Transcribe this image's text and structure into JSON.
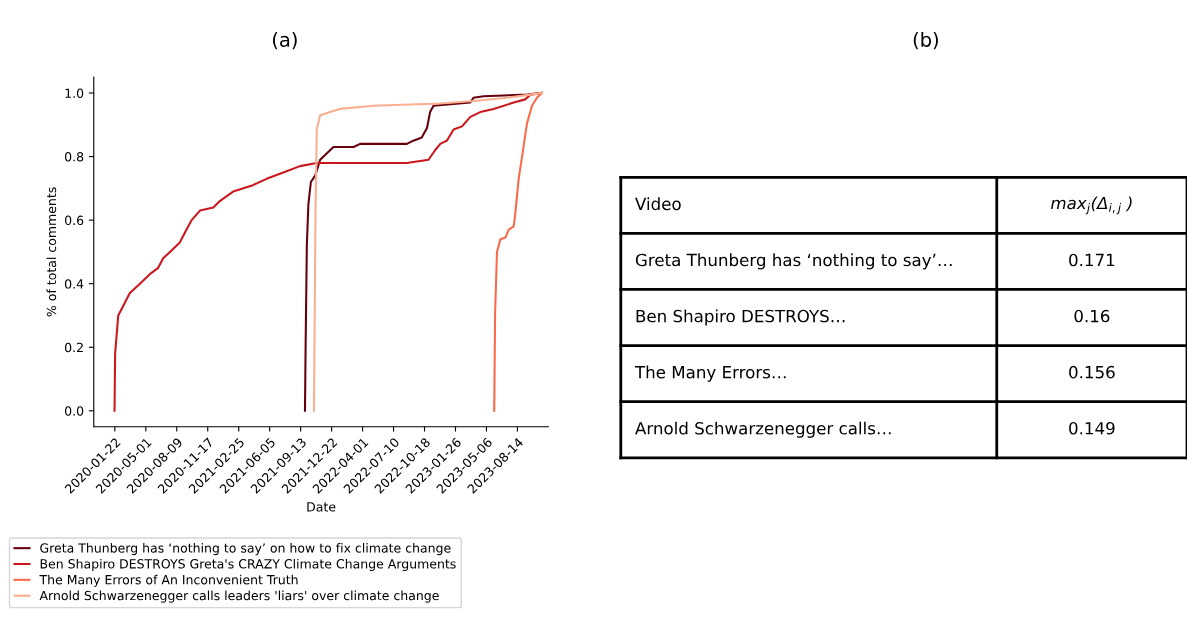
{
  "chart_data": [
    {
      "type": "line",
      "title": "(a)",
      "xlabel": "Date",
      "ylabel": "% of total comments",
      "xlim": [
        "2019-11-15",
        "2023-11-22"
      ],
      "ylim": [
        -0.05,
        1.05
      ],
      "xticks": [
        "2020-01-22",
        "2020-05-01",
        "2020-08-09",
        "2020-11-17",
        "2021-02-25",
        "2021-06-05",
        "2021-09-13",
        "2021-12-22",
        "2022-04-01",
        "2022-07-10",
        "2022-10-18",
        "2023-01-26",
        "2023-05-06",
        "2023-08-14"
      ],
      "yticks": [
        {
          "value": 0,
          "label": "0.0"
        },
        0.2,
        0.4,
        0.6,
        0.8,
        {
          "value": 1,
          "label": "1.0"
        }
      ],
      "legend": "bottom",
      "grid": false,
      "series": [
        {
          "name": "Greta Thunberg has ‘nothing to say’ on how to fix climate change",
          "color": "#67000d",
          "x": [
            "2021-09-27",
            "2021-09-29",
            "2021-10-03",
            "2021-10-08",
            "2021-10-16",
            "2021-10-30",
            "2021-11-15",
            "2021-12-06",
            "2021-12-28",
            "2022-03-03",
            "2022-03-24",
            "2022-08-22",
            "2022-09-12",
            "2022-10-09",
            "2022-10-26",
            "2022-11-05",
            "2022-11-16",
            "2023-03-15",
            "2023-03-25",
            "2023-04-27",
            "2023-09-14",
            "2023-11-01"
          ],
          "values": [
            0,
            0.2,
            0.52,
            0.65,
            0.72,
            0.74,
            0.79,
            0.81,
            0.83,
            0.83,
            0.84,
            0.84,
            0.85,
            0.86,
            0.89,
            0.94,
            0.96,
            0.97,
            0.985,
            0.99,
            0.995,
            1.0
          ]
        },
        {
          "name": "Ben Shapiro DESTROYS Greta's CRAZY Climate Change Arguments",
          "color": "#cb181d",
          "x": [
            "2020-01-21",
            "2020-01-23",
            "2020-02-02",
            "2020-02-18",
            "2020-03-10",
            "2020-04-12",
            "2020-05-14",
            "2020-06-10",
            "2020-06-26",
            "2020-07-18",
            "2020-08-19",
            "2020-09-04",
            "2020-09-26",
            "2020-10-23",
            "2020-12-05",
            "2020-12-26",
            "2021-02-07",
            "2021-04-12",
            "2021-05-26",
            "2021-07-19",
            "2021-09-11",
            "2021-11-04",
            "2022-08-22",
            "2022-10-31",
            "2022-11-21",
            "2022-12-08",
            "2022-12-29",
            "2023-01-20",
            "2023-02-16",
            "2023-03-15",
            "2023-04-16",
            "2023-05-29",
            "2023-08-02",
            "2023-09-08",
            "2023-09-25",
            "2023-11-01"
          ],
          "values": [
            0,
            0.18,
            0.3,
            0.33,
            0.37,
            0.4,
            0.43,
            0.45,
            0.48,
            0.5,
            0.53,
            0.56,
            0.6,
            0.63,
            0.64,
            0.66,
            0.69,
            0.71,
            0.73,
            0.75,
            0.77,
            0.78,
            0.78,
            0.79,
            0.82,
            0.84,
            0.85,
            0.885,
            0.895,
            0.925,
            0.94,
            0.95,
            0.97,
            0.98,
            0.995,
            1.0
          ]
        },
        {
          "name": "The Many Errors of An Inconvenient Truth",
          "color": "#fb6a4a",
          "x": [
            "2023-05-31",
            "2023-06-03",
            "2023-06-09",
            "2023-06-20",
            "2023-07-06",
            "2023-07-17",
            "2023-08-02",
            "2023-08-07",
            "2023-08-18",
            "2023-08-29",
            "2023-09-14",
            "2023-09-30",
            "2023-10-16",
            "2023-11-01"
          ],
          "values": [
            0,
            0.31,
            0.5,
            0.54,
            0.545,
            0.57,
            0.58,
            0.62,
            0.73,
            0.8,
            0.905,
            0.96,
            0.985,
            1.0
          ]
        },
        {
          "name": "Arnold Schwarzenegger calls leaders 'liars' over climate change",
          "color": "#fcae91",
          "x": [
            "2021-10-26",
            "2021-10-31",
            "2021-11-04",
            "2021-11-15",
            "2021-12-17",
            "2022-01-18",
            "2022-05-06",
            "2022-12-08",
            "2023-03-25",
            "2023-07-11",
            "2023-09-25",
            "2023-11-01"
          ],
          "values": [
            0,
            0.62,
            0.885,
            0.93,
            0.94,
            0.95,
            0.96,
            0.967,
            0.975,
            0.985,
            0.995,
            1.0
          ]
        }
      ]
    },
    {
      "type": "other",
      "title": "(b)",
      "xlabel": "Video",
      "ylabel": "max$_{j}$(Δ$_{i,j}$ )",
      "categories": [
        "Greta Thunberg has ‘nothing to say’…",
        "Ben Shapiro DESTROYS…",
        "The Many Errors…",
        "Arnold Schwarzenegger calls…"
      ],
      "values": [
        0.171,
        0.16,
        0.156,
        0.149
      ],
      "data_labels": true
    }
  ]
}
